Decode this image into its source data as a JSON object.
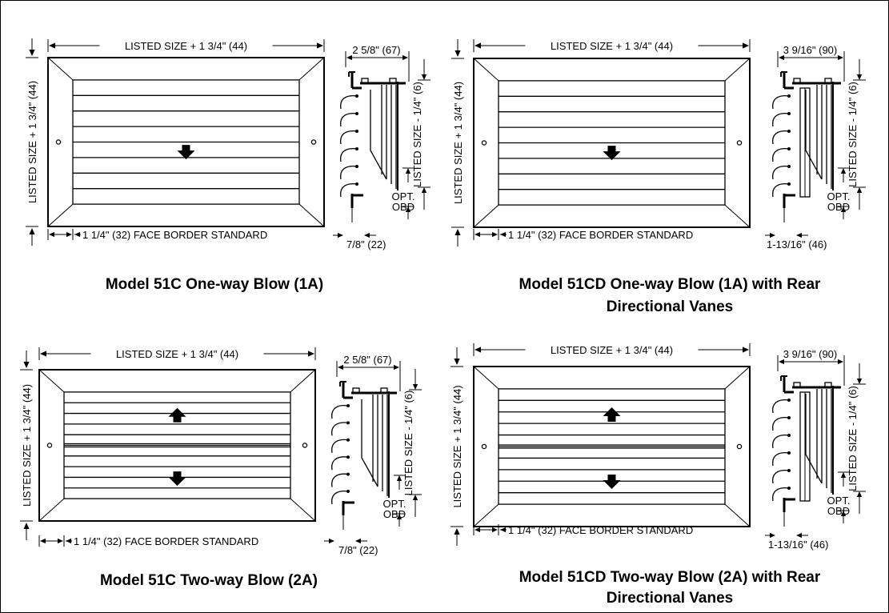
{
  "panels": [
    {
      "title": "Model 51C  One-way Blow (1A)",
      "title_line2": "",
      "width_label": "LISTED SIZE + 1 3/4\" (44)",
      "height_label": "LISTED SIZE + 1 3/4\" (44)",
      "border_label": "1 1/4\" (32) FACE BORDER STANDARD",
      "depth_label": "2 5/8\" (67)",
      "side_label": "LISTED SIZE - 1/4\" (6)",
      "opt_label": "OPT.",
      "obd_label": "OBD",
      "flange_label": "7/8\" (22)",
      "blow": "one-way",
      "rear_vanes": false
    },
    {
      "title": "Model 51CD  One-way Blow (1A) with Rear",
      "title_line2": "Directional Vanes",
      "width_label": "LISTED SIZE + 1 3/4\" (44)",
      "height_label": "LISTED SIZE + 1 3/4\" (44)",
      "border_label": "1 1/4\" (32) FACE BORDER STANDARD",
      "depth_label": "3 9/16\" (90)",
      "side_label": "LISTED SIZE - 1/4\" (6)",
      "opt_label": "OPT.",
      "obd_label": "OBD",
      "flange_label": "1-13/16\" (46)",
      "blow": "one-way",
      "rear_vanes": true
    },
    {
      "title": "Model 51C  Two-way Blow (2A)",
      "title_line2": "",
      "width_label": "LISTED SIZE + 1 3/4\" (44)",
      "height_label": "LISTED SIZE + 1 3/4\" (44)",
      "border_label": "1 1/4\" (32) FACE BORDER STANDARD",
      "depth_label": "2 5/8\" (67)",
      "side_label": "LISTED SIZE - 1/4\" (6)",
      "opt_label": "OPT.",
      "obd_label": "OBD",
      "flange_label": "7/8\" (22)",
      "blow": "two-way",
      "rear_vanes": false
    },
    {
      "title": "Model 51CD  Two-way Blow (2A) with Rear",
      "title_line2": "Directional Vanes",
      "width_label": "LISTED SIZE + 1 3/4\" (44)",
      "height_label": "LISTED SIZE + 1 3/4\" (44)",
      "border_label": "1 1/4\" (32) FACE BORDER STANDARD",
      "depth_label": "3 9/16\" (90)",
      "side_label": "LISTED SIZE - 1/4\" (6)",
      "opt_label": "OPT.",
      "obd_label": "OBD",
      "flange_label": "1-13/16\" (46)",
      "blow": "two-way",
      "rear_vanes": true
    }
  ]
}
